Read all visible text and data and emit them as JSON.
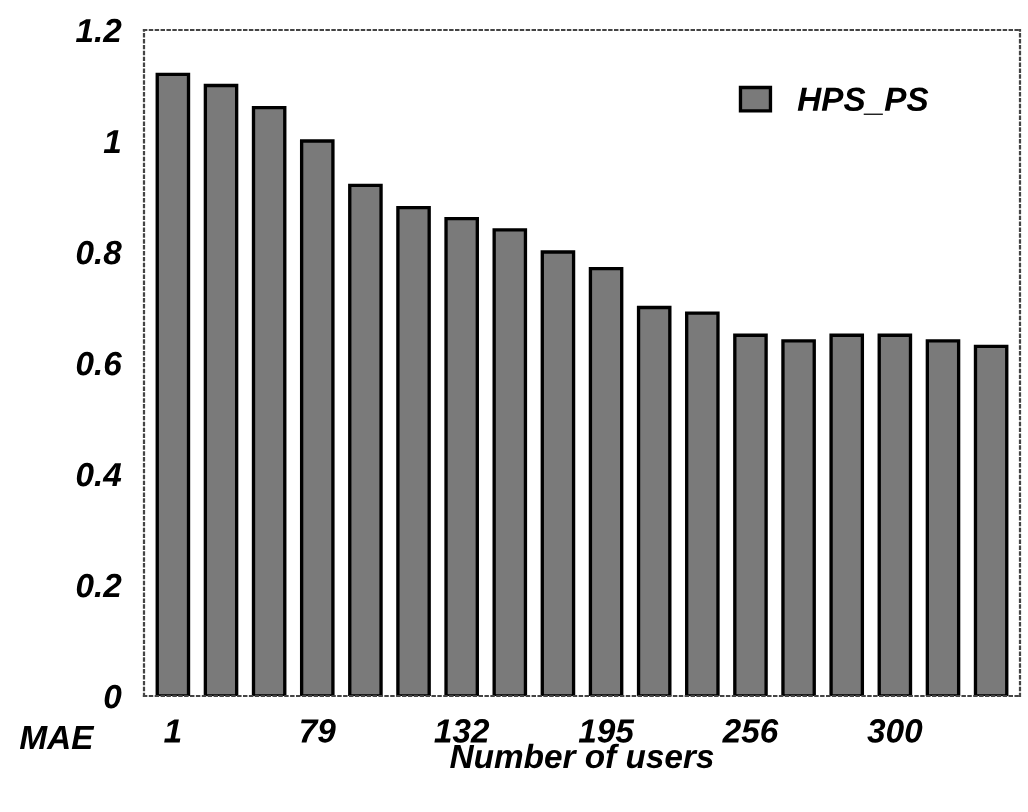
{
  "chart_data": {
    "type": "bar",
    "xlabel": "Number of users",
    "ylabel": "MAE",
    "categories": [
      "1",
      null,
      null,
      "79",
      null,
      null,
      "132",
      null,
      null,
      "195",
      null,
      null,
      "256",
      null,
      null,
      "300",
      null,
      null
    ],
    "series": [
      {
        "name": "HPS_PS",
        "color": "#7a7a7a",
        "values": [
          1.12,
          1.1,
          1.06,
          1.0,
          0.92,
          0.88,
          0.86,
          0.84,
          0.8,
          0.77,
          0.7,
          0.69,
          0.65,
          0.64,
          0.65,
          0.65,
          0.64,
          0.63
        ]
      }
    ],
    "ylim": [
      0,
      1.2
    ],
    "yticks": [
      0,
      0.2,
      0.4,
      0.6,
      0.8,
      1,
      1.2
    ],
    "grid": false,
    "legend": "top right"
  }
}
